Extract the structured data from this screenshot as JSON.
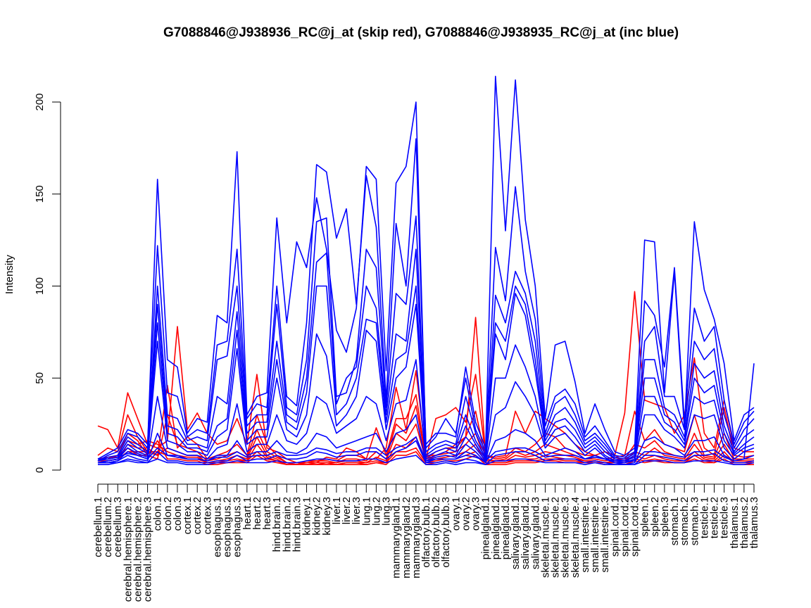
{
  "chart_data": {
    "type": "line",
    "title": "G7088846@J938936_RC@j_at (skip red), G7088846@J938935_RC@j_at (inc blue)",
    "xlabel": "",
    "ylabel": "Intensity",
    "ylim": [
      0,
      200
    ],
    "yticks": [
      0,
      50,
      100,
      150,
      200
    ],
    "grid": false,
    "colors": {
      "skip": "#ff0000",
      "inc": "#0000ff",
      "axis": "#000000"
    },
    "categories": [
      "cerebellum.1",
      "cerebellum.2",
      "cerebellum.3",
      "cerebral.hemisphere.1",
      "cerebral.hemisphere.2",
      "cerebral.hemisphere.3",
      "colon.1",
      "colon.2",
      "colon.3",
      "cortex.1",
      "cortex.2",
      "cortex.3",
      "esophagus.1",
      "esophagus.2",
      "esophagus.3",
      "heart.1",
      "heart.2",
      "heart.3",
      "hind.brain.1",
      "hind.brain.2",
      "hind.brain.3",
      "kidney.1",
      "kidney.2",
      "kidney.3",
      "liver.1",
      "liver.2",
      "liver.3",
      "lung.1",
      "lung.2",
      "lung.3",
      "mammarygland.1",
      "mammarygland.2",
      "mammarygland.3",
      "olfactory.bulb.1",
      "olfactory.bulb.2",
      "olfactory.bulb.3",
      "ovary.1",
      "ovary.2",
      "ovary.3",
      "pinealgland.1",
      "pinealgland.2",
      "pinealgland.3",
      "salivary.gland.1",
      "salivary.gland.2",
      "salivary.gland.3",
      "skeletal.muscle.1",
      "skeletal.muscle.2",
      "skeletal.muscle.3",
      "skeletal.muscle.4",
      "small.intestine.1",
      "small.intestine.2",
      "small.intestine.3",
      "spinal.cord.1",
      "spinal.cord.2",
      "spinal.cord.3",
      "spleen.1",
      "spleen.2",
      "spleen.3",
      "stomach.1",
      "stomach.2",
      "stomach.3",
      "testicle.1",
      "testicle.2",
      "testicle.3",
      "thalamus.1",
      "thalamus.2",
      "thalamus.3"
    ],
    "series": [
      {
        "group": "skip",
        "values": [
          24,
          22,
          12,
          42,
          28,
          14,
          12,
          16,
          78,
          22,
          31,
          20,
          14,
          16,
          28,
          14,
          52,
          12,
          10,
          6,
          4,
          4,
          4,
          7,
          6,
          12,
          10,
          6,
          6,
          12,
          45,
          22,
          54,
          8,
          8,
          10,
          14,
          18,
          83,
          8,
          7,
          8,
          32,
          20,
          32,
          28,
          24,
          20,
          14,
          10,
          8,
          10,
          8,
          31,
          97,
          38,
          36,
          34,
          20,
          30,
          61,
          20,
          12,
          38,
          12,
          10,
          10
        ]
      },
      {
        "group": "skip",
        "values": [
          8,
          12,
          10,
          30,
          18,
          10,
          8,
          46,
          12,
          18,
          14,
          6,
          8,
          10,
          14,
          8,
          30,
          14,
          8,
          4,
          3,
          5,
          5,
          6,
          5,
          8,
          8,
          6,
          23,
          8,
          28,
          28,
          41,
          6,
          28,
          30,
          34,
          26,
          52,
          8,
          6,
          7,
          12,
          10,
          14,
          20,
          18,
          12,
          10,
          8,
          8,
          6,
          7,
          8,
          32,
          16,
          22,
          14,
          12,
          10,
          30,
          12,
          8,
          34,
          8,
          7,
          8
        ]
      },
      {
        "group": "skip",
        "values": [
          6,
          6,
          8,
          20,
          16,
          8,
          6,
          30,
          14,
          12,
          10,
          5,
          6,
          8,
          10,
          7,
          22,
          10,
          7,
          4,
          3,
          4,
          5,
          5,
          4,
          6,
          6,
          5,
          10,
          6,
          25,
          20,
          35,
          6,
          10,
          12,
          12,
          18,
          32,
          6,
          5,
          6,
          10,
          8,
          10,
          14,
          12,
          10,
          8,
          6,
          6,
          5,
          6,
          6,
          14,
          12,
          16,
          10,
          8,
          7,
          20,
          8,
          7,
          20,
          6,
          6,
          6
        ]
      },
      {
        "group": "skip",
        "values": [
          5,
          5,
          6,
          14,
          12,
          12,
          8,
          12,
          10,
          8,
          8,
          4,
          5,
          6,
          8,
          6,
          18,
          8,
          6,
          3,
          3,
          3,
          4,
          4,
          4,
          5,
          5,
          4,
          7,
          5,
          20,
          16,
          25,
          5,
          8,
          9,
          10,
          14,
          20,
          5,
          5,
          5,
          8,
          7,
          8,
          10,
          9,
          8,
          7,
          5,
          5,
          4,
          5,
          5,
          10,
          8,
          12,
          8,
          7,
          6,
          14,
          7,
          6,
          14,
          5,
          5,
          5
        ]
      },
      {
        "group": "skip",
        "values": [
          6,
          7,
          7,
          16,
          14,
          16,
          14,
          10,
          8,
          7,
          7,
          4,
          4,
          5,
          6,
          5,
          14,
          7,
          5,
          3,
          3,
          3,
          3,
          4,
          3,
          4,
          4,
          4,
          5,
          4,
          14,
          12,
          18,
          4,
          6,
          7,
          8,
          10,
          14,
          4,
          4,
          4,
          6,
          6,
          6,
          8,
          7,
          6,
          6,
          5,
          5,
          4,
          4,
          4,
          8,
          6,
          8,
          6,
          5,
          5,
          10,
          6,
          5,
          10,
          4,
          4,
          4
        ]
      },
      {
        "group": "skip",
        "values": [
          4,
          5,
          6,
          10,
          10,
          10,
          10,
          8,
          7,
          6,
          6,
          4,
          4,
          4,
          5,
          5,
          10,
          6,
          5,
          3,
          3,
          3,
          3,
          3,
          3,
          4,
          4,
          3,
          4,
          4,
          10,
          10,
          12,
          4,
          5,
          6,
          6,
          8,
          10,
          4,
          4,
          4,
          5,
          5,
          5,
          6,
          6,
          5,
          5,
          4,
          4,
          4,
          4,
          4,
          6,
          5,
          6,
          5,
          4,
          4,
          8,
          5,
          4,
          8,
          4,
          4,
          4
        ]
      },
      {
        "group": "skip",
        "values": [
          5,
          6,
          8,
          12,
          8,
          8,
          16,
          6,
          6,
          5,
          5,
          3,
          3,
          4,
          4,
          4,
          8,
          5,
          4,
          3,
          3,
          3,
          3,
          3,
          3,
          3,
          3,
          3,
          4,
          3,
          8,
          8,
          10,
          3,
          4,
          5,
          5,
          6,
          8,
          3,
          3,
          3,
          4,
          4,
          4,
          5,
          5,
          4,
          4,
          4,
          4,
          3,
          3,
          3,
          5,
          4,
          5,
          4,
          4,
          4,
          6,
          4,
          4,
          6,
          3,
          3,
          3
        ]
      },
      {
        "group": "inc",
        "values": [
          5,
          8,
          10,
          20,
          18,
          12,
          158,
          60,
          56,
          20,
          28,
          26,
          84,
          80,
          173,
          30,
          40,
          42,
          137,
          80,
          124,
          110,
          148,
          120,
          76,
          64,
          88,
          165,
          158,
          54,
          156,
          165,
          200,
          12,
          18,
          28,
          20,
          50,
          22,
          10,
          214,
          130,
          212,
          136,
          100,
          28,
          68,
          70,
          48,
          20,
          36,
          22,
          10,
          8,
          12,
          125,
          124,
          42,
          108,
          22,
          135,
          98,
          82,
          58,
          16,
          30,
          34
        ]
      },
      {
        "group": "inc",
        "values": [
          6,
          9,
          12,
          22,
          20,
          14,
          122,
          42,
          40,
          18,
          22,
          20,
          68,
          70,
          120,
          28,
          36,
          34,
          100,
          40,
          35,
          80,
          166,
          162,
          126,
          142,
          90,
          160,
          132,
          38,
          134,
          100,
          180,
          14,
          20,
          20,
          18,
          56,
          26,
          12,
          121,
          92,
          154,
          108,
          82,
          24,
          40,
          44,
          36,
          18,
          24,
          16,
          8,
          7,
          10,
          92,
          84,
          56,
          110,
          26,
          88,
          70,
          78,
          38,
          14,
          26,
          32
        ]
      },
      {
        "group": "inc",
        "values": [
          5,
          7,
          8,
          18,
          14,
          10,
          100,
          30,
          28,
          16,
          18,
          16,
          60,
          62,
          100,
          24,
          30,
          30,
          90,
          34,
          30,
          60,
          135,
          137,
          40,
          42,
          60,
          120,
          110,
          34,
          96,
          90,
          138,
          10,
          14,
          16,
          14,
          40,
          20,
          8,
          95,
          80,
          108,
          96,
          70,
          20,
          36,
          40,
          30,
          16,
          20,
          14,
          7,
          6,
          9,
          70,
          78,
          40,
          40,
          22,
          70,
          60,
          66,
          30,
          12,
          22,
          28
        ]
      },
      {
        "group": "inc",
        "values": [
          5,
          6,
          7,
          16,
          12,
          9,
          90,
          24,
          22,
          14,
          14,
          12,
          40,
          36,
          86,
          20,
          26,
          26,
          70,
          30,
          26,
          50,
          113,
          118,
          36,
          50,
          56,
          100,
          88,
          30,
          74,
          70,
          120,
          8,
          12,
          14,
          12,
          30,
          16,
          7,
          80,
          70,
          100,
          90,
          60,
          18,
          30,
          34,
          26,
          14,
          18,
          12,
          6,
          5,
          8,
          60,
          60,
          34,
          30,
          18,
          58,
          50,
          54,
          24,
          10,
          18,
          22
        ]
      },
      {
        "group": "inc",
        "values": [
          4,
          5,
          6,
          14,
          10,
          8,
          80,
          20,
          18,
          12,
          12,
          10,
          24,
          28,
          76,
          16,
          22,
          22,
          60,
          26,
          22,
          42,
          100,
          100,
          30,
          36,
          50,
          82,
          80,
          26,
          60,
          64,
          100,
          7,
          10,
          12,
          10,
          24,
          14,
          6,
          74,
          60,
          96,
          84,
          54,
          16,
          26,
          28,
          22,
          12,
          16,
          10,
          6,
          5,
          7,
          50,
          50,
          30,
          26,
          16,
          50,
          42,
          46,
          20,
          9,
          14,
          18
        ]
      },
      {
        "group": "inc",
        "values": [
          4,
          5,
          6,
          12,
          9,
          7,
          70,
          16,
          14,
          10,
          10,
          8,
          18,
          22,
          66,
          14,
          18,
          18,
          50,
          22,
          18,
          30,
          74,
          62,
          24,
          30,
          40,
          76,
          70,
          22,
          50,
          56,
          90,
          6,
          8,
          10,
          8,
          18,
          12,
          5,
          50,
          50,
          68,
          56,
          40,
          14,
          22,
          24,
          18,
          10,
          14,
          8,
          5,
          4,
          6,
          40,
          40,
          26,
          22,
          14,
          40,
          36,
          38,
          16,
          8,
          12,
          14
        ]
      },
      {
        "group": "inc",
        "values": [
          4,
          4,
          5,
          10,
          8,
          6,
          40,
          12,
          10,
          8,
          8,
          6,
          12,
          14,
          36,
          10,
          14,
          14,
          30,
          16,
          14,
          20,
          40,
          36,
          20,
          24,
          28,
          40,
          36,
          16,
          36,
          38,
          60,
          5,
          7,
          8,
          7,
          14,
          10,
          4,
          30,
          34,
          48,
          40,
          30,
          12,
          18,
          20,
          14,
          8,
          12,
          7,
          4,
          4,
          5,
          30,
          30,
          22,
          18,
          12,
          30,
          28,
          30,
          12,
          6,
          10,
          12
        ]
      },
      {
        "group": "inc",
        "values": [
          4,
          4,
          5,
          8,
          6,
          5,
          20,
          8,
          8,
          6,
          6,
          5,
          8,
          8,
          16,
          8,
          10,
          10,
          16,
          10,
          9,
          12,
          20,
          18,
          12,
          14,
          16,
          18,
          20,
          10,
          20,
          22,
          30,
          4,
          6,
          6,
          6,
          10,
          8,
          4,
          16,
          18,
          22,
          20,
          16,
          8,
          10,
          12,
          10,
          6,
          8,
          6,
          4,
          3,
          4,
          16,
          18,
          14,
          12,
          8,
          16,
          16,
          18,
          8,
          5,
          6,
          8
        ]
      },
      {
        "group": "inc",
        "values": [
          4,
          4,
          4,
          6,
          5,
          4,
          10,
          5,
          5,
          4,
          4,
          4,
          5,
          5,
          8,
          5,
          6,
          6,
          8,
          6,
          6,
          7,
          10,
          9,
          7,
          8,
          8,
          10,
          10,
          6,
          10,
          12,
          16,
          4,
          4,
          5,
          4,
          6,
          5,
          3,
          8,
          9,
          10,
          10,
          8,
          5,
          6,
          6,
          6,
          4,
          5,
          4,
          3,
          3,
          3,
          8,
          8,
          7,
          6,
          5,
          8,
          8,
          9,
          5,
          4,
          4,
          5
        ]
      },
      {
        "group": "inc",
        "values": [
          3,
          3,
          4,
          5,
          4,
          4,
          6,
          4,
          4,
          3,
          3,
          3,
          4,
          4,
          5,
          4,
          4,
          4,
          5,
          4,
          4,
          5,
          6,
          6,
          5,
          5,
          5,
          6,
          6,
          4,
          6,
          7,
          8,
          3,
          3,
          4,
          3,
          4,
          4,
          3,
          5,
          5,
          6,
          6,
          5,
          4,
          4,
          4,
          4,
          3,
          4,
          3,
          3,
          3,
          3,
          5,
          5,
          5,
          4,
          4,
          5,
          5,
          5,
          4,
          3,
          3,
          4
        ]
      },
      {
        "group": "inc",
        "values": [
          6,
          6,
          7,
          9,
          8,
          6,
          12,
          8,
          7,
          6,
          6,
          5,
          7,
          7,
          10,
          7,
          8,
          8,
          10,
          8,
          8,
          9,
          12,
          11,
          9,
          10,
          10,
          12,
          12,
          8,
          12,
          14,
          18,
          5,
          6,
          6,
          6,
          8,
          7,
          5,
          10,
          11,
          12,
          12,
          10,
          7,
          8,
          8,
          8,
          6,
          7,
          6,
          5,
          5,
          5,
          10,
          10,
          9,
          8,
          7,
          10,
          10,
          11,
          7,
          5,
          6,
          58
        ]
      }
    ]
  }
}
